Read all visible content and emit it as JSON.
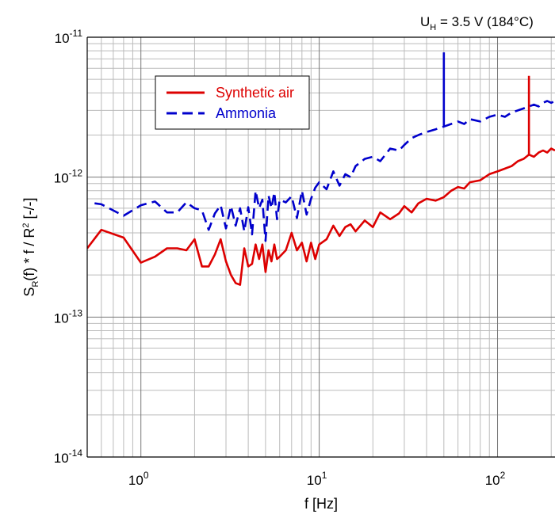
{
  "chart_data": {
    "type": "line",
    "title": "",
    "annotation": {
      "text": "U",
      "sub": "H",
      "rest": " = 3.5 V (184°C)"
    },
    "xlabel": "f  [Hz]",
    "ylabel": {
      "s": "S",
      "sub": "R",
      "mid": "(f) * f / R",
      "sup": "2",
      "end": "  [-/-]"
    },
    "x_scale": "log",
    "y_scale": "log",
    "xlim": [
      0.5,
      210
    ],
    "ylim": [
      1e-14,
      1e-11
    ],
    "grid": true,
    "legend_position": "top-left",
    "x_ticks": [
      {
        "value": 1,
        "base": "10",
        "exp": "0"
      },
      {
        "value": 10,
        "base": "10",
        "exp": "1"
      },
      {
        "value": 100,
        "base": "10",
        "exp": "2"
      }
    ],
    "y_ticks": [
      {
        "value": 1e-11,
        "base": "10",
        "exp": "-11"
      },
      {
        "value": 1e-12,
        "base": "10",
        "exp": "-12"
      },
      {
        "value": 1e-13,
        "base": "10",
        "exp": "-13"
      },
      {
        "value": 1e-14,
        "base": "10",
        "exp": "-14"
      }
    ],
    "series": [
      {
        "name": "Synthetic air",
        "color": "#dd0000",
        "dash": "solid",
        "x": [
          0.5,
          0.6,
          0.8,
          1.0,
          1.2,
          1.4,
          1.6,
          1.8,
          2.0,
          2.2,
          2.4,
          2.6,
          2.8,
          3.0,
          3.2,
          3.4,
          3.6,
          3.8,
          4.0,
          4.2,
          4.4,
          4.6,
          4.8,
          5.0,
          5.2,
          5.4,
          5.6,
          5.8,
          6.0,
          6.5,
          7.0,
          7.5,
          8.0,
          8.5,
          9.0,
          9.5,
          10,
          11,
          12,
          13,
          14,
          15,
          16,
          18,
          20,
          22,
          25,
          28,
          30,
          33,
          36,
          40,
          45,
          50,
          55,
          60,
          65,
          70,
          80,
          90,
          100,
          110,
          120,
          130,
          140,
          150,
          160,
          170,
          180,
          190,
          200,
          210
        ],
        "y": [
          3.1e-13,
          4.2e-13,
          3.7e-13,
          2.45e-13,
          2.7e-13,
          3.1e-13,
          3.1e-13,
          3e-13,
          3.6e-13,
          2.3e-13,
          2.3e-13,
          2.8e-13,
          3.6e-13,
          2.5e-13,
          2e-13,
          1.75e-13,
          1.7e-13,
          3.1e-13,
          2.3e-13,
          2.4e-13,
          3.3e-13,
          2.6e-13,
          3.3e-13,
          2.1e-13,
          3e-13,
          2.5e-13,
          3.3e-13,
          2.6e-13,
          2.7e-13,
          3e-13,
          4e-13,
          3e-13,
          3.4e-13,
          2.5e-13,
          3.4e-13,
          2.6e-13,
          3.3e-13,
          3.6e-13,
          4.5e-13,
          3.8e-13,
          4.4e-13,
          4.6e-13,
          4.1e-13,
          4.9e-13,
          4.4e-13,
          5.6e-13,
          5e-13,
          5.5e-13,
          6.2e-13,
          5.6e-13,
          6.5e-13,
          7e-13,
          6.8e-13,
          7.2e-13,
          8e-13,
          8.5e-13,
          8.3e-13,
          9.2e-13,
          9.5e-13,
          1.05e-12,
          1.1e-12,
          1.15e-12,
          1.2e-12,
          1.3e-12,
          1.35e-12,
          1.45e-12,
          1.4e-12,
          1.5e-12,
          1.55e-12,
          1.5e-12,
          1.6e-12,
          1.55e-12
        ],
        "spikes": [
          {
            "x": 150,
            "y": 5.3e-12
          }
        ]
      },
      {
        "name": "Ammonia",
        "color": "#0000cc",
        "dash": "dashed",
        "x": [
          0.55,
          0.6,
          0.8,
          1.0,
          1.2,
          1.4,
          1.6,
          1.8,
          2.0,
          2.2,
          2.4,
          2.6,
          2.8,
          3.0,
          3.2,
          3.4,
          3.6,
          3.8,
          4.0,
          4.2,
          4.4,
          4.6,
          4.8,
          5.0,
          5.2,
          5.4,
          5.6,
          5.8,
          6.0,
          6.5,
          7.0,
          7.5,
          8.0,
          8.5,
          9.0,
          9.5,
          10,
          11,
          12,
          13,
          14,
          15,
          16,
          18,
          20,
          22,
          25,
          28,
          30,
          33,
          36,
          40,
          45,
          50,
          55,
          60,
          65,
          70,
          80,
          90,
          100,
          110,
          120,
          130,
          140,
          150,
          160,
          170,
          180,
          190,
          200,
          210
        ],
        "y": [
          6.5e-13,
          6.4e-13,
          5.3e-13,
          6.3e-13,
          6.7e-13,
          5.6e-13,
          5.6e-13,
          6.6e-13,
          6e-13,
          5.8e-13,
          4.2e-13,
          5.5e-13,
          6.3e-13,
          4.3e-13,
          6.2e-13,
          4.5e-13,
          6e-13,
          4.1e-13,
          6.1e-13,
          3.9e-13,
          8e-13,
          6e-13,
          6.9e-13,
          3.5e-13,
          7.4e-13,
          6e-13,
          7.8e-13,
          5e-13,
          6.9e-13,
          6.6e-13,
          7.3e-13,
          5.1e-13,
          8e-13,
          5.4e-13,
          7e-13,
          8.4e-13,
          9.2e-13,
          8.2e-13,
          1.1e-12,
          8.7e-13,
          1.05e-12,
          1e-12,
          1.2e-12,
          1.35e-12,
          1.4e-12,
          1.3e-12,
          1.6e-12,
          1.55e-12,
          1.7e-12,
          1.9e-12,
          2e-12,
          2.1e-12,
          2.2e-12,
          2.3e-12,
          2.4e-12,
          2.5e-12,
          2.4e-12,
          2.6e-12,
          2.5e-12,
          2.7e-12,
          2.8e-12,
          2.7e-12,
          2.9e-12,
          3e-12,
          3.1e-12,
          3.2e-12,
          3.3e-12,
          3.2e-12,
          3.4e-12,
          3.5e-12,
          3.4e-12,
          3.5e-12
        ],
        "spikes": [
          {
            "x": 50,
            "y": 7.8e-12
          }
        ]
      }
    ]
  }
}
